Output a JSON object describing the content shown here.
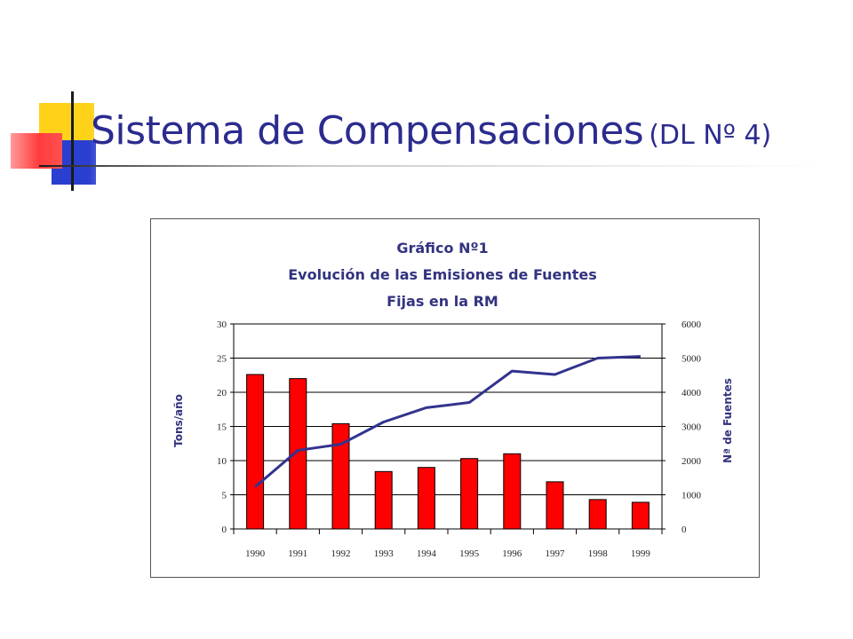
{
  "slide": {
    "title_main": "Sistema de Compensaciones",
    "title_sub": "(DL Nº 4)"
  },
  "colors": {
    "title": "#2b2b8f",
    "bars": "#ff0000",
    "line": "#33338f",
    "deco_yellow": "#ffd21a",
    "deco_blue": "#2a3fcf",
    "deco_red": "#ff3c3c"
  },
  "chart_data": {
    "type": "bar",
    "title_lines": [
      "Gráfico Nº1",
      "Evolución de las Emisiones de Fuentes",
      "Fijas en la RM"
    ],
    "categories": [
      "1990",
      "1991",
      "1992",
      "1993",
      "1994",
      "1995",
      "1996",
      "1997",
      "1998",
      "1999"
    ],
    "ylabel": "Tons/año",
    "y2label": "Nª de Fuentes",
    "ylim": [
      0,
      30
    ],
    "y2lim": [
      0,
      6000
    ],
    "yticks": [
      "0",
      "5",
      "10",
      "15",
      "20",
      "25",
      "30"
    ],
    "y2ticks": [
      "0",
      "1000",
      "2000",
      "3000",
      "4000",
      "5000",
      "6000"
    ],
    "grid": "horizontal",
    "legend": "none",
    "series": [
      {
        "type": "bar",
        "axis": "left",
        "values": [
          22.6,
          22.0,
          15.4,
          8.4,
          9.0,
          10.3,
          11.0,
          6.9,
          4.3,
          3.9
        ]
      },
      {
        "type": "line",
        "axis": "right",
        "values": [
          1230,
          2300,
          2480,
          3130,
          3550,
          3700,
          4620,
          4520,
          5000,
          5050
        ]
      }
    ]
  }
}
